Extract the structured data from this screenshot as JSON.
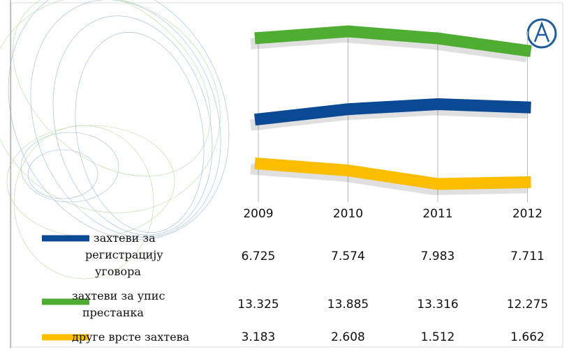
{
  "chart_data": {
    "type": "line",
    "categories": [
      "2009",
      "2010",
      "2011",
      "2012"
    ],
    "series": [
      {
        "name": "захтеви за регистрацију уговора",
        "color": "#0a4a94",
        "values": [
          6725,
          7574,
          7983,
          7711
        ],
        "value_labels": [
          "6.725",
          "7.574",
          "7.983",
          "7.711"
        ]
      },
      {
        "name": "захтеви за упис престанка",
        "color": "#4fae32",
        "values": [
          13325,
          13885,
          13316,
          12275
        ],
        "value_labels": [
          "13.325",
          "13.885",
          "13.316",
          "12.275"
        ]
      },
      {
        "name": "друге врсте захтева",
        "color": "#fbbd00",
        "values": [
          3183,
          2608,
          1512,
          1662
        ],
        "value_labels": [
          "3.183",
          "2.608",
          "1.512",
          "1.662"
        ]
      }
    ]
  }
}
